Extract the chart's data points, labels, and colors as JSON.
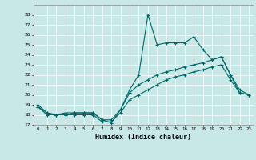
{
  "xlabel": "Humidex (Indice chaleur)",
  "x": [
    0,
    1,
    2,
    3,
    4,
    5,
    6,
    7,
    8,
    9,
    10,
    11,
    12,
    13,
    14,
    15,
    16,
    17,
    18,
    19,
    20,
    21,
    22,
    23
  ],
  "line1": [
    19,
    18.2,
    18,
    18,
    18.2,
    18.2,
    18.2,
    17.5,
    17.5,
    18.5,
    20.5,
    22,
    28,
    25,
    25.2,
    25.2,
    25.2,
    25.8,
    24.5,
    23.5,
    23.8,
    22,
    20.2,
    20
  ],
  "line2": [
    18.8,
    18.2,
    18,
    18.2,
    18.2,
    18.2,
    18.2,
    17.5,
    17.2,
    18.5,
    20.2,
    21.0,
    21.5,
    22.0,
    22.3,
    22.5,
    22.8,
    23.0,
    23.2,
    23.5,
    23.8,
    22.0,
    20.5,
    20.0
  ],
  "line3": [
    18.8,
    18.0,
    18.0,
    18.0,
    18.0,
    18.0,
    18.0,
    17.3,
    17.3,
    18.2,
    19.5,
    20.0,
    20.5,
    21.0,
    21.5,
    21.8,
    22.0,
    22.3,
    22.5,
    22.8,
    23.0,
    21.5,
    20.2,
    20.0
  ],
  "line_color": "#006666",
  "bg_color": "#c8e8e8",
  "grid_color": "#ffffff",
  "ylim": [
    17,
    29
  ],
  "yticks": [
    17,
    18,
    19,
    20,
    21,
    22,
    23,
    24,
    25,
    26,
    27,
    28
  ],
  "xlim": [
    -0.5,
    23.5
  ],
  "xticks": [
    0,
    1,
    2,
    3,
    4,
    5,
    6,
    7,
    8,
    9,
    10,
    11,
    12,
    13,
    14,
    15,
    16,
    17,
    18,
    19,
    20,
    21,
    22,
    23
  ]
}
